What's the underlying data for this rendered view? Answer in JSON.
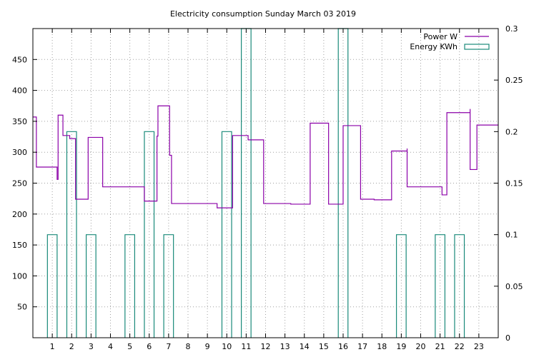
{
  "chart_data": {
    "type": "line",
    "title": "Electricity consumption Sunday March 03 2019",
    "xlabel": "",
    "ylabel": "",
    "xlim": [
      0,
      24
    ],
    "ylim": [
      0,
      500
    ],
    "y2lim": [
      0,
      0.3
    ],
    "x_ticks": [
      1,
      2,
      3,
      4,
      5,
      6,
      7,
      8,
      9,
      10,
      11,
      12,
      13,
      14,
      15,
      16,
      17,
      18,
      19,
      20,
      21,
      22,
      23
    ],
    "y_ticks": [
      50,
      100,
      150,
      200,
      250,
      300,
      350,
      400,
      450
    ],
    "y2_ticks": [
      0,
      0.05,
      0.1,
      0.15,
      0.2,
      0.25,
      0.3
    ],
    "grid": true,
    "legend_position": "top-right",
    "colors": {
      "power": "#8b00a8",
      "energy": "#1a8a7a"
    },
    "series": [
      {
        "name": "Power W",
        "style": "steps",
        "axis": "y",
        "x": [
          0,
          0.18,
          0.18,
          1.2,
          1.25,
          1.3,
          1.55,
          1.55,
          1.9,
          1.9,
          2.15,
          2.2,
          2.2,
          2.85,
          2.85,
          3.35,
          3.6,
          3.6,
          5.75,
          5.75,
          5.95,
          6.4,
          6.45,
          6.45,
          7.0,
          7.05,
          7.05,
          7.15,
          7.15,
          9.5,
          9.5,
          10.3,
          10.3,
          11.0,
          11.1,
          11.9,
          11.9,
          13.3,
          13.3,
          14.3,
          14.3,
          15.15,
          15.25,
          15.25,
          16.0,
          16.0,
          16.9,
          16.9,
          17.6,
          18.5,
          18.5,
          19.1,
          19.3,
          19.3,
          21.1,
          21.1,
          21.3,
          21.35,
          21.35,
          22.5,
          22.55,
          22.55,
          22.9,
          22.9,
          24
        ],
        "y": [
          357,
          350,
          276,
          276,
          256,
          360,
          360,
          327,
          327,
          322,
          322,
          224,
          224,
          224,
          324,
          324,
          306,
          244,
          244,
          221,
          221,
          326,
          326,
          375,
          375,
          353,
          295,
          280,
          217,
          217,
          210,
          210,
          327,
          327,
          320,
          320,
          217,
          217,
          216,
          216,
          347,
          347,
          238,
          216,
          216,
          343,
          343,
          224,
          223,
          223,
          302,
          302,
          306,
          244,
          244,
          231,
          231,
          274,
          364,
          364,
          370,
          272,
          272,
          344,
          344
        ]
      },
      {
        "name": "Energy KWh",
        "style": "impulses-boxes",
        "axis": "y2",
        "x": [
          1,
          2,
          3,
          5,
          6,
          7,
          10,
          11,
          16,
          19,
          21,
          22
        ],
        "y": [
          0.1,
          0.2,
          0.1,
          0.1,
          0.2,
          0.1,
          0.2,
          0.3,
          0.3,
          0.1,
          0.1,
          0.1
        ]
      }
    ]
  }
}
